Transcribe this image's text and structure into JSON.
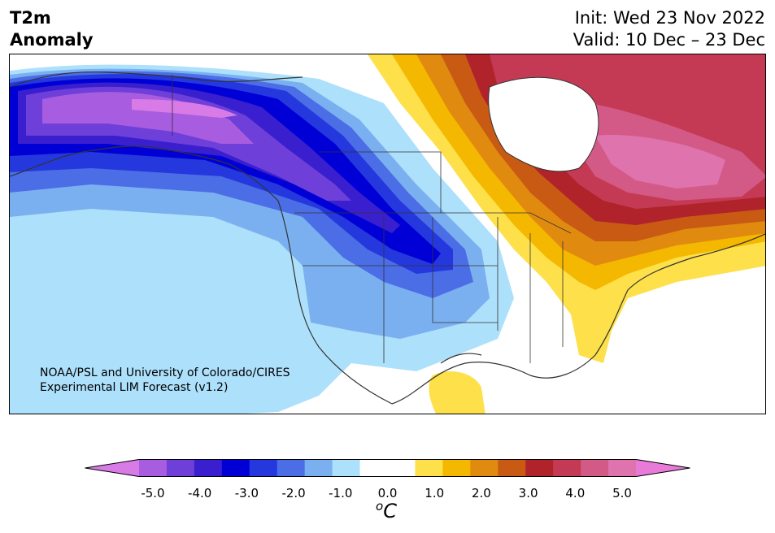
{
  "header": {
    "title_line1": "T2m",
    "title_line2": "Anomaly",
    "init": "Init: Wed 23 Nov 2022",
    "valid": "Valid: 10 Dec – 23 Dec"
  },
  "credit": {
    "line1": "NOAA/PSL and University of Colorado/CIRES",
    "line2": "Experimental LIM Forecast (v1.2)"
  },
  "colorbar": {
    "unit_base": "C",
    "unit_sup": "o",
    "tick_labels": [
      "-5.0",
      "-4.0",
      "-3.0",
      "-2.0",
      "-1.0",
      "0.0",
      "1.0",
      "2.0",
      "3.0",
      "4.0",
      "5.0"
    ],
    "colors": [
      "#d97be6",
      "#a85ce0",
      "#6e3fd9",
      "#3a1fcf",
      "#0000d6",
      "#2538de",
      "#4b6ee6",
      "#7bb0f0",
      "#ade0fb",
      "#ffffff",
      "#ffffff",
      "#fde04a",
      "#f5b800",
      "#e08b10",
      "#c85a14",
      "#b0232a",
      "#c43a55",
      "#d35a86",
      "#de73ae",
      "#e87bd8"
    ],
    "colors_note_match": ""
  }
}
